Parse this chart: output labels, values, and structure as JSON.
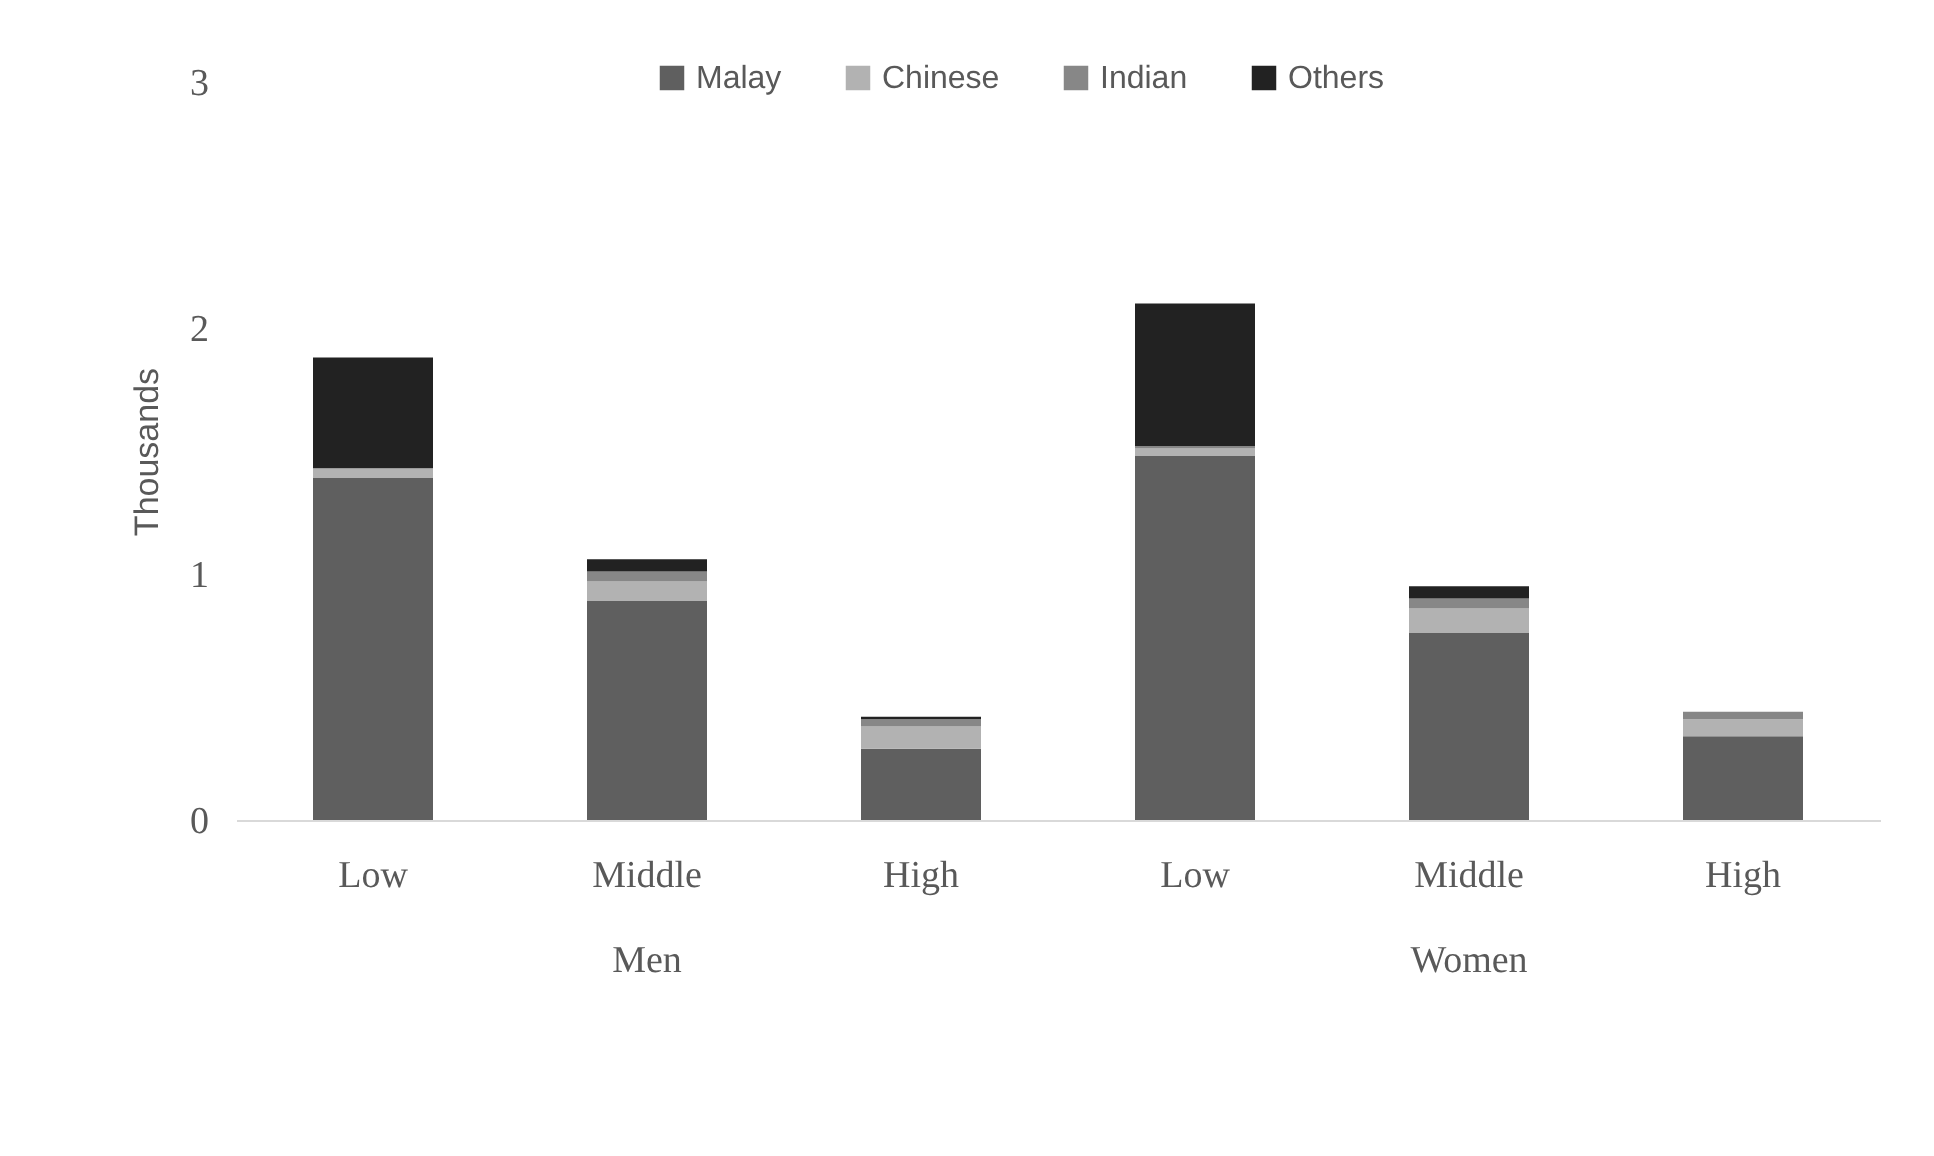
{
  "chart_data": {
    "type": "bar",
    "stacked": true,
    "ylabel": "Thousands",
    "categories": [
      "Low",
      "Middle",
      "High",
      "Low",
      "Middle",
      "High"
    ],
    "annotations": [
      "Men",
      "Women"
    ],
    "series": [
      {
        "name": "Malay",
        "color": "#5f5f5f",
        "values": [
          1.39,
          0.89,
          0.29,
          1.48,
          0.76,
          0.34
        ]
      },
      {
        "name": "Chinese",
        "color": "#b2b2b2",
        "values": [
          0.04,
          0.08,
          0.09,
          0.03,
          0.1,
          0.07
        ]
      },
      {
        "name": "Indian",
        "color": "#878787",
        "values": [
          0,
          0.04,
          0.03,
          0.01,
          0.04,
          0.03
        ]
      },
      {
        "name": "Others",
        "color": "#222222",
        "values": [
          0.45,
          0.05,
          0.01,
          0.58,
          0.05,
          0
        ]
      }
    ],
    "ylim": [
      0,
      3
    ],
    "yticks": [
      0,
      1,
      2,
      3
    ],
    "grid": false,
    "legend": "top"
  }
}
